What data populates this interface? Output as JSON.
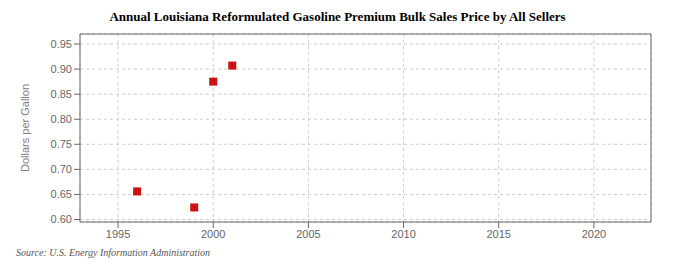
{
  "chart_data": {
    "type": "scatter",
    "title": "Annual Louisiana Reformulated Gasoline Premium Bulk Sales Price by All Sellers",
    "ylabel": "Dollars per Gallon",
    "annotations": [
      "Source: U.S. Energy Information Administration"
    ],
    "x": [
      1996,
      1999,
      2000,
      2001
    ],
    "values": [
      0.656,
      0.624,
      0.875,
      0.907
    ],
    "color": "#cc1111",
    "marker": "square",
    "xlim": [
      1993,
      2023
    ],
    "ylim": [
      0.595,
      0.97
    ],
    "xticks": [
      1995,
      2000,
      2005,
      2010,
      2015,
      2020
    ],
    "yticks": [
      {
        "value": 0.6,
        "label": "0.60"
      },
      0.65,
      {
        "value": 0.7,
        "label": "0.70"
      },
      0.75,
      {
        "value": 0.8,
        "label": "0.80"
      },
      0.85,
      {
        "value": 0.9,
        "label": "0.90"
      },
      0.95
    ],
    "grid": true
  }
}
